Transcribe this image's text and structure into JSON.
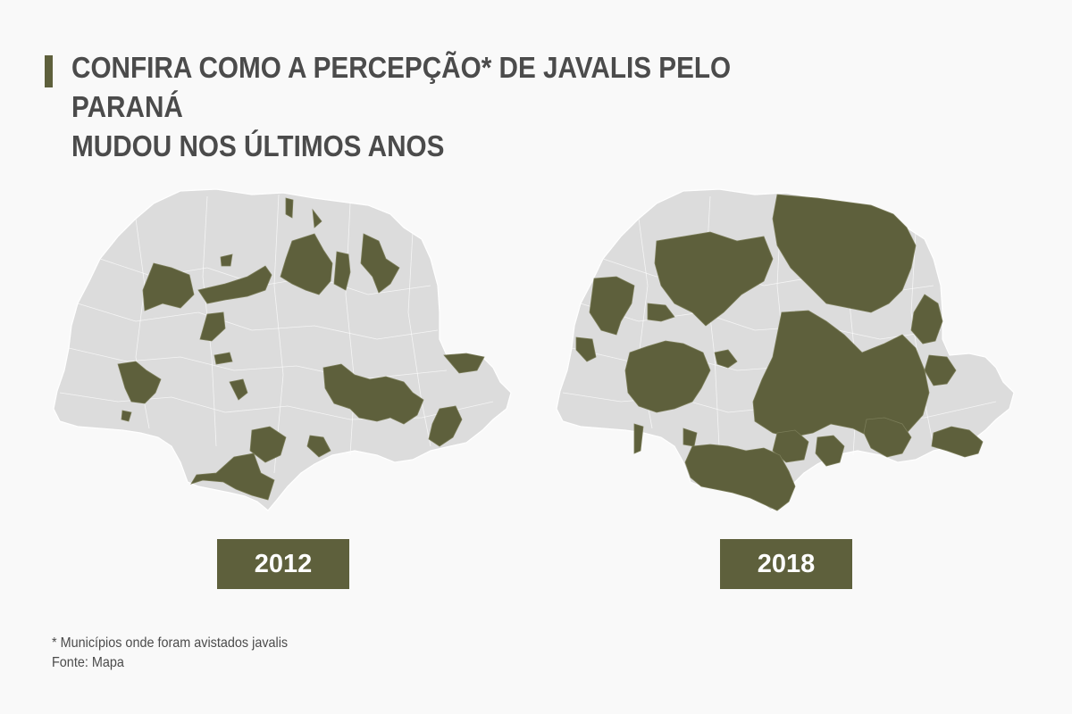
{
  "title": {
    "line1": "CONFIRA COMO A PERCEPÇÃO* DE JAVALIS PELO PARANÁ",
    "line2": "MUDOU NOS ÚLTIMOS ANOS"
  },
  "maps": [
    {
      "year_label": "2012",
      "state": "Paraná"
    },
    {
      "year_label": "2018",
      "state": "Paraná"
    }
  ],
  "colors": {
    "highlight": "#5e603c",
    "base_map": "#dcdcdc",
    "background": "#f9f9f9",
    "text": "#4b4b4b"
  },
  "footnote": "* Municípios onde foram avistados javalis",
  "source": "Fonte: Mapa"
}
